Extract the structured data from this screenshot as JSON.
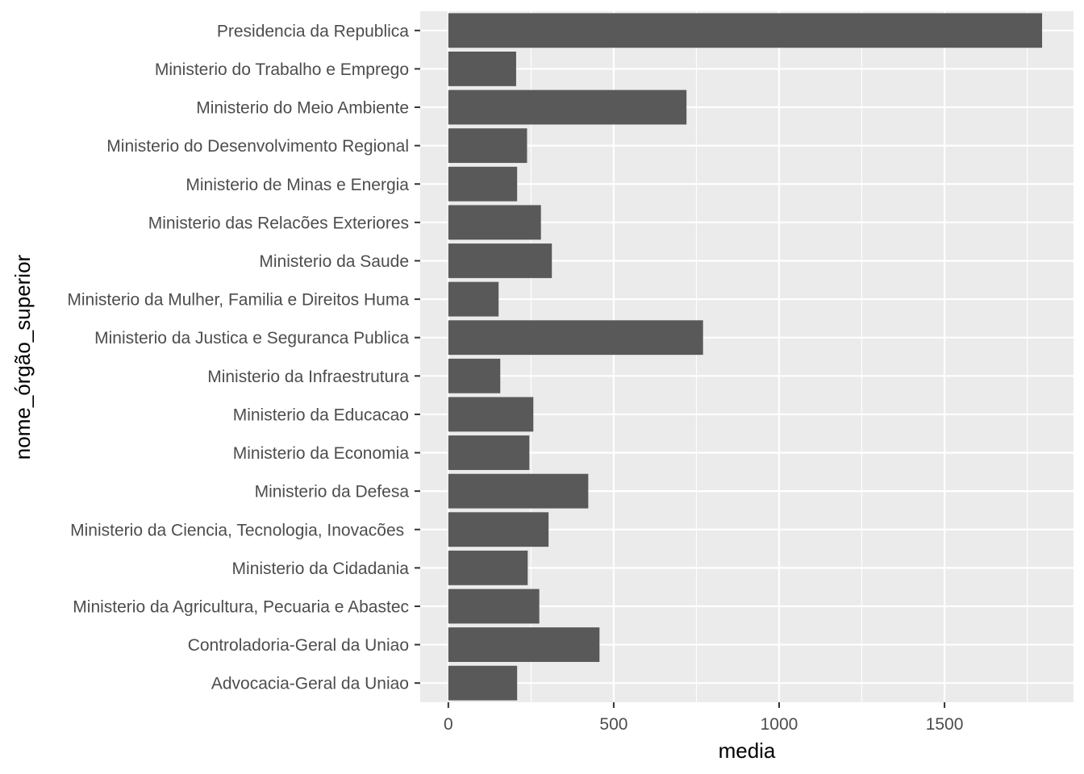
{
  "chart_data": {
    "type": "bar",
    "orientation": "horizontal",
    "xlabel": "media",
    "ylabel": "nome_órgão_superior",
    "xlim": [
      -85,
      1890
    ],
    "x_ticks": [
      0,
      500,
      1000,
      1500
    ],
    "x_tick_labels": [
      "0",
      "500",
      "1000",
      "1500"
    ],
    "grid": true,
    "colors": {
      "panel": "#ebebeb",
      "grid": "#ffffff",
      "bar": "#595959",
      "tick_text": "#4d4d4d",
      "title_text": "#000000"
    },
    "categories": [
      "Presidencia da Republica",
      "Ministerio do Trabalho e Emprego",
      "Ministerio do Meio Ambiente",
      "Ministerio do Desenvolvimento Regional",
      "Ministerio de Minas e Energia",
      "Ministerio das Relacões Exteriores",
      "Ministerio da Saude",
      "Ministerio da Mulher, Familia e Direitos Huma",
      "Ministerio da Justica e Seguranca Publica",
      "Ministerio da Infraestrutura",
      "Ministerio da Educacao",
      "Ministerio da Economia",
      "Ministerio da Defesa",
      "Ministerio da Ciencia, Tecnologia, Inovacões ",
      "Ministerio da Cidadania",
      "Ministerio da Agricultura, Pecuaria e Abastec",
      "Controladoria-Geral da Uniao",
      "Advocacia-Geral da Uniao"
    ],
    "values": [
      1795,
      205,
      720,
      238,
      208,
      280,
      313,
      152,
      770,
      157,
      257,
      245,
      423,
      303,
      240,
      275,
      457,
      208
    ]
  }
}
